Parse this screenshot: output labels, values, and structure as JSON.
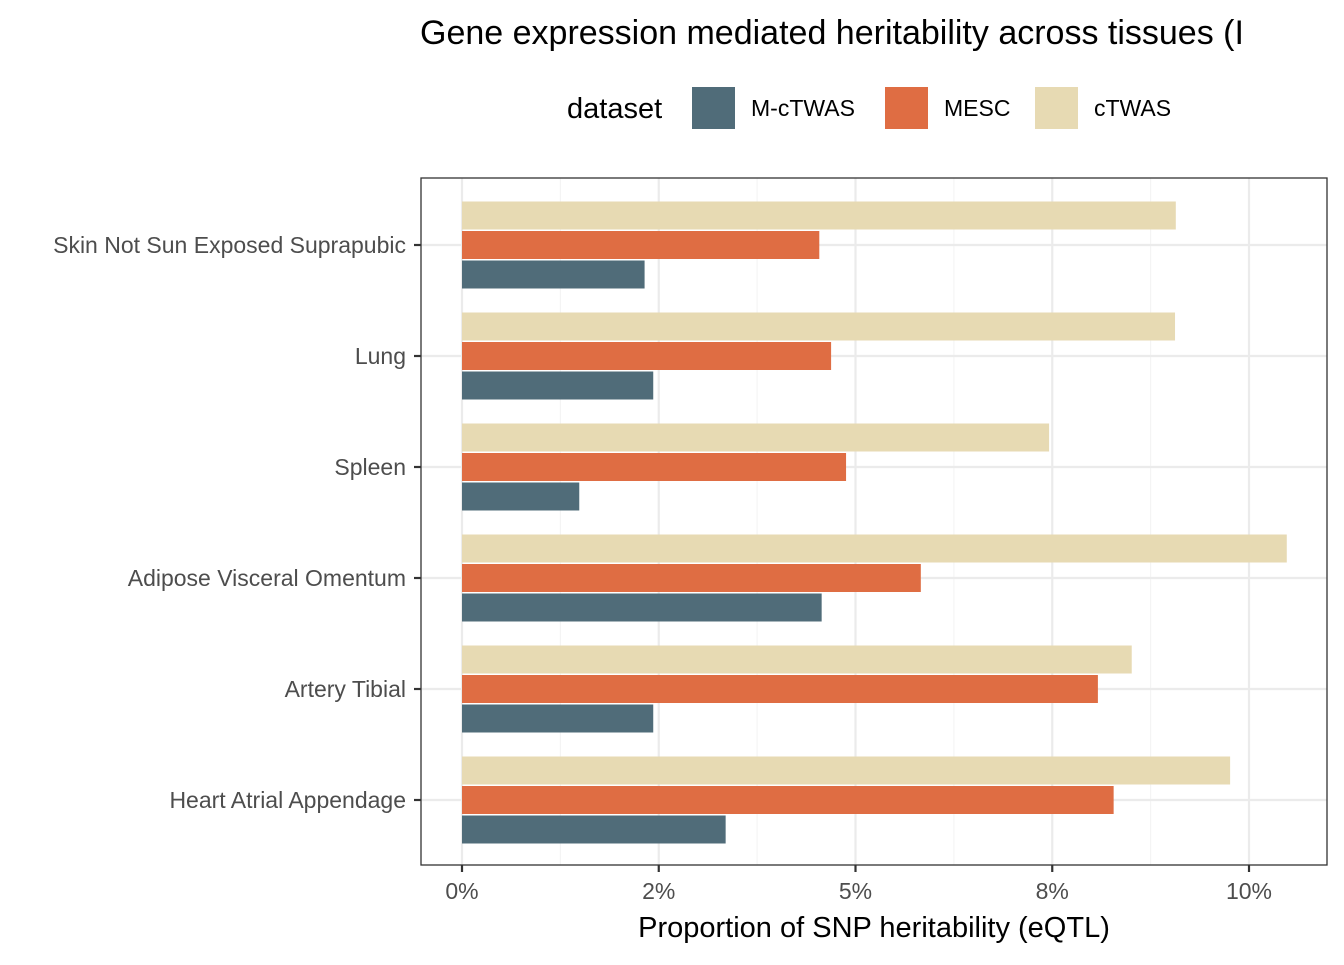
{
  "chart_data": {
    "type": "bar",
    "orientation": "horizontal",
    "title": "Gene expression mediated heritability across tissues (I",
    "xlabel": "Proportion of SNP heritability (eQTL)",
    "ylabel": "",
    "xlim": [
      0,
      0.11
    ],
    "x_ticks": [
      0,
      0.025,
      0.05,
      0.075,
      0.1
    ],
    "x_tick_labels": [
      "0%",
      "2%",
      "5%",
      "8%",
      "10%"
    ],
    "grid": true,
    "legend": {
      "title": "dataset",
      "placement": "top"
    },
    "categories": [
      "Skin Not Sun Exposed Suprapubic",
      "Lung",
      "Spleen",
      "Adipose Visceral Omentum",
      "Artery Tibial",
      "Heart Atrial Appendage"
    ],
    "series": [
      {
        "name": "M-cTWAS",
        "color": "#506c79",
        "values": [
          0.0232,
          0.0243,
          0.0149,
          0.0457,
          0.0243,
          0.0335
        ]
      },
      {
        "name": "MESC",
        "color": "#df6d43",
        "values": [
          0.0454,
          0.0469,
          0.0488,
          0.0583,
          0.0808,
          0.0828
        ]
      },
      {
        "name": "cTWAS",
        "color": "#e7dab3",
        "values": [
          0.0907,
          0.0906,
          0.0746,
          0.1048,
          0.0851,
          0.0976
        ]
      }
    ]
  }
}
